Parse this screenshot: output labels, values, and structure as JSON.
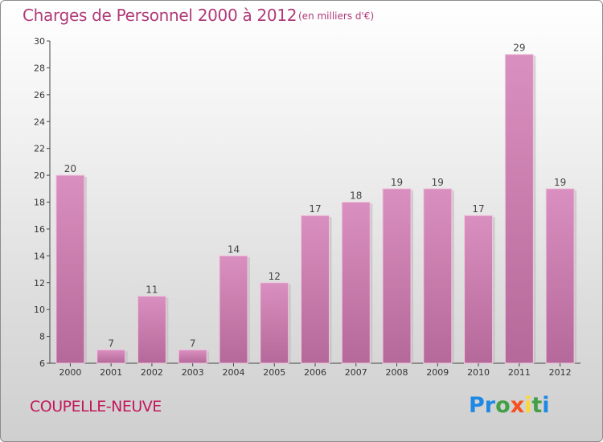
{
  "header": {
    "title": "Charges de Personnel 2000 à 2012",
    "subtitle": "(en milliers d'€)"
  },
  "footer": {
    "commune": "COUPELLE-NEUVE",
    "logo_letters": [
      "P",
      "r",
      "o",
      "x",
      "i",
      "t",
      "i"
    ],
    "logo_colors": [
      "#1e88e5",
      "#1e88e5",
      "#43a047",
      "#f4511e",
      "#fdd835",
      "#43a047",
      "#1e88e5"
    ]
  },
  "colors": {
    "bar": "#d98fbf",
    "bar_dark": "#b5699a",
    "title": "#b03a78"
  },
  "chart_data": {
    "type": "bar",
    "title": "Charges de Personnel 2000 à 2012",
    "subtitle": "(en milliers d'€)",
    "categories": [
      "2000",
      "2001",
      "2002",
      "2003",
      "2004",
      "2005",
      "2006",
      "2007",
      "2008",
      "2009",
      "2010",
      "2011",
      "2012"
    ],
    "values": [
      20,
      7,
      11,
      7,
      14,
      12,
      17,
      18,
      19,
      19,
      17,
      29,
      19
    ],
    "ylim": [
      6,
      30
    ],
    "yticks": [
      6,
      8,
      10,
      12,
      14,
      16,
      18,
      20,
      22,
      24,
      26,
      28,
      30
    ],
    "grid": false,
    "legend": "none"
  }
}
